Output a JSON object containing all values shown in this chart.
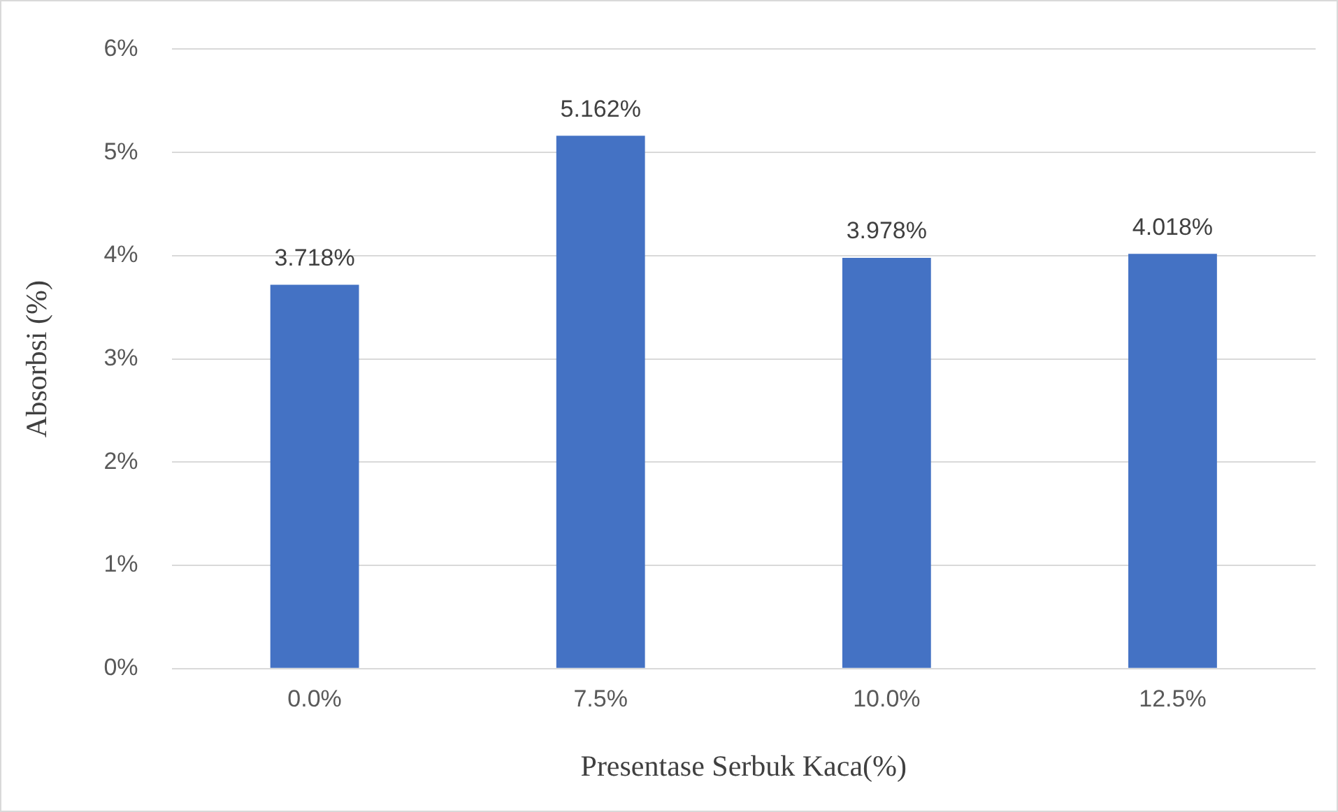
{
  "chart_data": {
    "type": "bar",
    "xlabel": "Presentase Serbuk Kaca(%)",
    "ylabel": "Absorbsi (%)",
    "categories": [
      "0.0%",
      "7.5%",
      "10.0%",
      "12.5%"
    ],
    "values": [
      3.718,
      5.162,
      3.978,
      4.018
    ],
    "value_labels": [
      "3.718%",
      "5.162%",
      "3.978%",
      "4.018%"
    ],
    "color": "#4472c4",
    "ylim": [
      0,
      6
    ],
    "yticks": [
      {
        "value": 0,
        "label": "0%"
      },
      {
        "value": 1,
        "label": "1%"
      },
      {
        "value": 2,
        "label": "2%"
      },
      {
        "value": 3,
        "label": "3%"
      },
      {
        "value": 4,
        "label": "4%"
      },
      {
        "value": 5,
        "label": "5%"
      },
      {
        "value": 6,
        "label": "6%"
      }
    ],
    "grid": "y"
  }
}
